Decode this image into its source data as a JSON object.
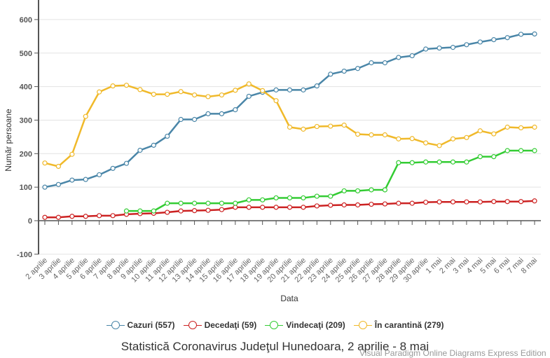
{
  "chart_data": {
    "type": "line",
    "title": "Statistică Coronavirus Judeţul Hunedoara, 2 aprilie - 8 mai",
    "xlabel": "Data",
    "ylabel": "Număr persoane",
    "ylim": [
      -100,
      650
    ],
    "yticks": [
      -100,
      0,
      100,
      200,
      300,
      400,
      500,
      600
    ],
    "grid": true,
    "legend_position": "bottom",
    "categories": [
      "2 aprilie",
      "3 aprilie",
      "4 aprilie",
      "5 aprilie",
      "6 aprilie",
      "7 aprilie",
      "8 aprilie",
      "9 aprilie",
      "10 aprilie",
      "11 aprilie",
      "12 aprilie",
      "13 aprilie",
      "14 aprilie",
      "15 aprilie",
      "16 aprilie",
      "17 aprilie",
      "18 aprilie",
      "19 aprilie",
      "20 aprilie",
      "21 aprilie",
      "22 aprilie",
      "23 aprilie",
      "24 aprilie",
      "25 aprilie",
      "26 aprilie",
      "27 aprilie",
      "28 aprilie",
      "29 aprilie",
      "30 aprilie",
      "1 mai",
      "2 mai",
      "3 mai",
      "4 mai",
      "5 mai",
      "6 mai",
      "7 mai",
      "8 mai"
    ],
    "series": [
      {
        "name": "Cazuri (557)",
        "color": "#4a86a8",
        "values": [
          100,
          108,
          121,
          123,
          137,
          156,
          171,
          210,
          225,
          252,
          302,
          302,
          319,
          319,
          331,
          371,
          383,
          390,
          390,
          390,
          402,
          437,
          446,
          454,
          471,
          471,
          487,
          492,
          512,
          515,
          517,
          525,
          533,
          540,
          546,
          556,
          557
        ]
      },
      {
        "name": "Decedaţi (59)",
        "color": "#cc2222",
        "values": [
          10,
          10,
          13,
          13,
          15,
          15,
          19,
          21,
          22,
          25,
          29,
          30,
          31,
          33,
          40,
          40,
          40,
          40,
          40,
          40,
          44,
          46,
          47,
          47,
          49,
          50,
          52,
          52,
          55,
          56,
          56,
          56,
          56,
          57,
          57,
          57,
          59
        ]
      },
      {
        "name": "Vindecaţi (209)",
        "color": "#33cc33",
        "values": [
          null,
          null,
          null,
          null,
          null,
          null,
          29,
          29,
          29,
          52,
          52,
          52,
          52,
          52,
          52,
          62,
          62,
          68,
          68,
          68,
          73,
          73,
          89,
          89,
          92,
          92,
          173,
          173,
          175,
          175,
          175,
          175,
          191,
          191,
          209,
          209,
          209
        ]
      },
      {
        "name": "În carantină (279)",
        "color": "#f0b92a",
        "values": [
          172,
          162,
          198,
          311,
          384,
          402,
          404,
          391,
          377,
          377,
          385,
          375,
          370,
          375,
          389,
          408,
          388,
          358,
          279,
          273,
          281,
          282,
          285,
          258,
          256,
          256,
          244,
          245,
          232,
          224,
          244,
          248,
          268,
          259,
          279,
          277,
          279
        ]
      }
    ]
  },
  "legend": [
    {
      "label": "Cazuri (557)",
      "color": "#4a86a8"
    },
    {
      "label": "Decedaţi (59)",
      "color": "#cc2222"
    },
    {
      "label": "Vindecaţi (209)",
      "color": "#33cc33"
    },
    {
      "label": "În carantină (279)",
      "color": "#f0b92a"
    }
  ],
  "watermark": "Visual Paradigm Online Diagrams Express Edition"
}
